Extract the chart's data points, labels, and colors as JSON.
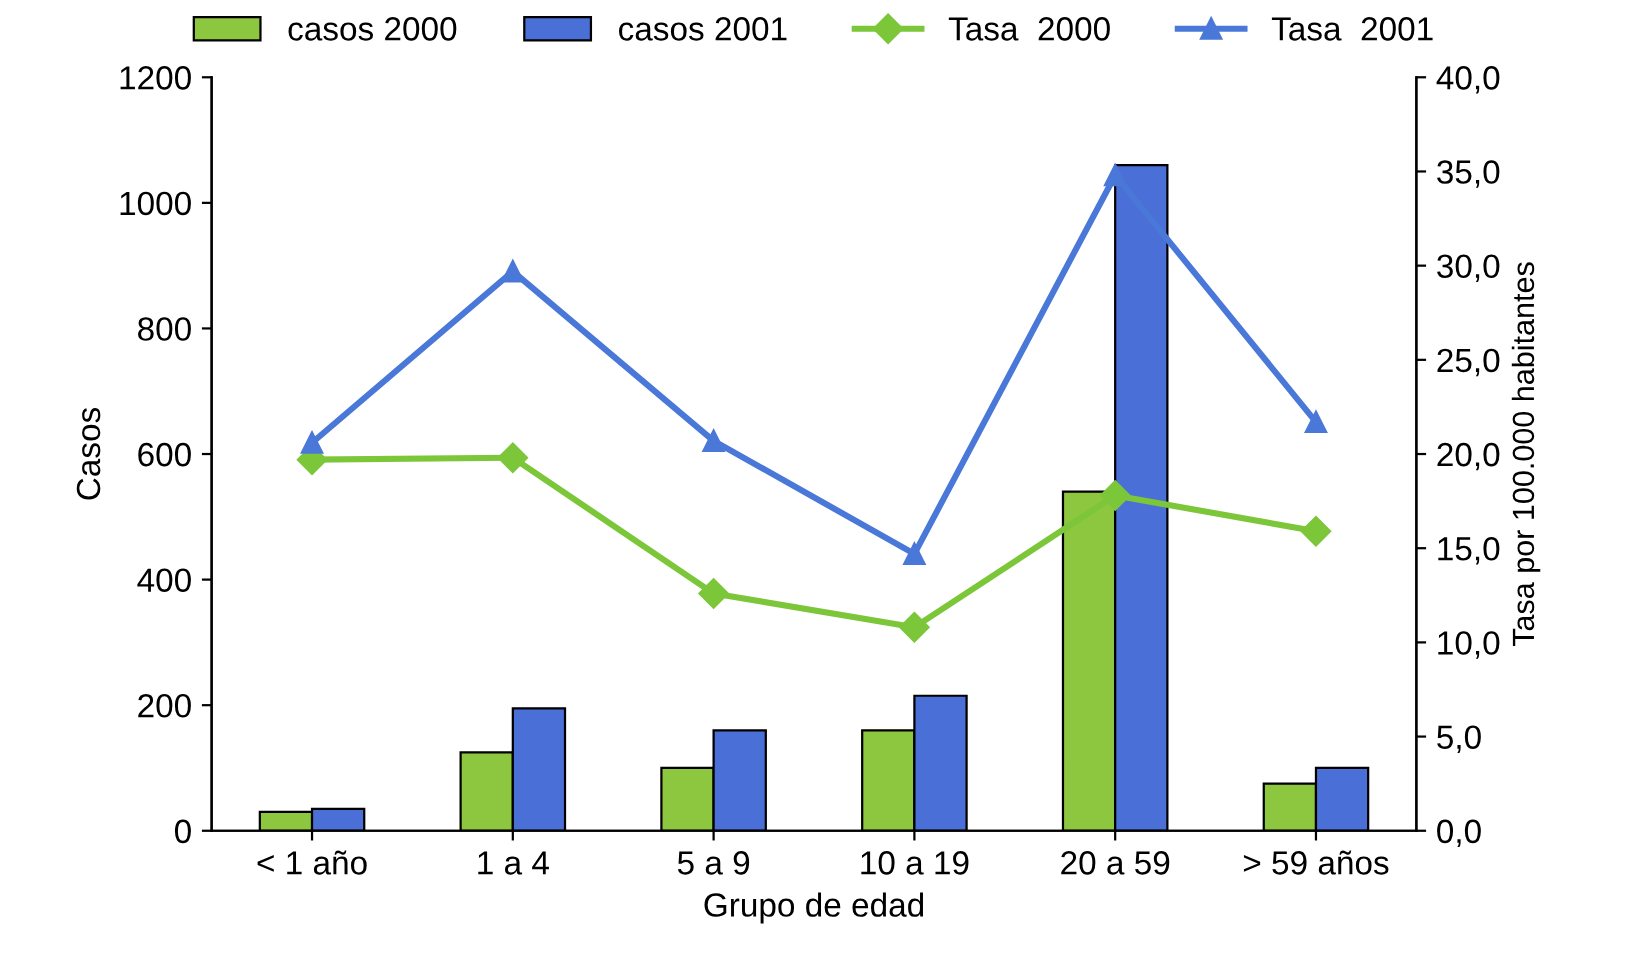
{
  "chart_data": {
    "type": "bar",
    "xlabel": "Grupo de edad",
    "ylabel": "Casos",
    "y2label": "Tasa por 100.000 habitantes",
    "categories": [
      "< 1 año",
      "1 a 4",
      "5 a 9",
      "10 a 19",
      "20 a 59",
      "> 59 años"
    ],
    "series": [
      {
        "name": "casos 2000",
        "color": "#8dc63f",
        "values": [
          30,
          125,
          100,
          160,
          540,
          75
        ]
      },
      {
        "name": "casos 2001",
        "color": "#4a6fd6",
        "values": [
          35,
          195,
          160,
          215,
          1060,
          100
        ]
      },
      {
        "name": "Tasa  2000",
        "type": "line",
        "axis": "y2",
        "marker": "diamond",
        "color": "#7cc63a",
        "values": [
          19.7,
          19.8,
          12.6,
          10.8,
          17.8,
          15.9
        ]
      },
      {
        "name": "Tasa  2001",
        "type": "line",
        "axis": "y2",
        "marker": "triangle",
        "color": "#4a78d8",
        "values": [
          20.6,
          29.7,
          20.7,
          14.7,
          34.8,
          21.7
        ]
      }
    ],
    "ylim": [
      0,
      1200
    ],
    "yticks": [
      0,
      200,
      400,
      600,
      800,
      1000,
      1200
    ],
    "y2lim": [
      0,
      40
    ],
    "y2ticks": [
      {
        "value": 0,
        "label": "0,0"
      },
      {
        "value": 5,
        "label": "5,0"
      },
      {
        "value": 10,
        "label": "10,0"
      },
      {
        "value": 15,
        "label": "15,0"
      },
      {
        "value": 20,
        "label": "20,0"
      },
      {
        "value": 25,
        "label": "25,0"
      },
      {
        "value": 30,
        "label": "30,0"
      },
      {
        "value": 35,
        "label": "35,0"
      },
      {
        "value": 40,
        "label": "40,0"
      }
    ],
    "legend": "top",
    "grid": false
  }
}
